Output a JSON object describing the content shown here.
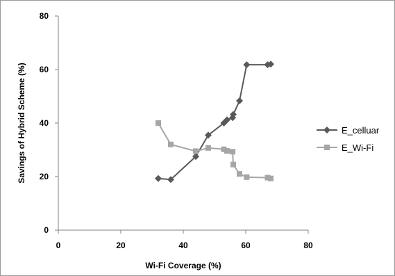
{
  "chart_data": {
    "type": "scatter",
    "xlabel": "Wi-Fi Coverage (%)",
    "ylabel": "Savings of Hybrid Scheme (%)",
    "xlim": [
      0,
      80
    ],
    "ylim": [
      0,
      80
    ],
    "xticks": [
      0,
      20,
      40,
      60,
      80
    ],
    "yticks": [
      0,
      20,
      40,
      60,
      80
    ],
    "grid": false,
    "legend_position": "right",
    "series": [
      {
        "name": "E_celluar",
        "color": "#595959",
        "marker": "diamond",
        "points": [
          [
            32,
            19.3
          ],
          [
            36,
            18.9
          ],
          [
            44,
            27.5
          ],
          [
            48,
            35.5
          ],
          [
            53,
            40
          ],
          [
            54,
            41.2
          ],
          [
            55.8,
            42
          ],
          [
            56,
            43.2
          ],
          [
            58,
            48.3
          ],
          [
            60.3,
            61.8
          ],
          [
            67,
            61.8
          ],
          [
            68,
            62
          ]
        ]
      },
      {
        "name": "E_Wi-Fi",
        "color": "#a6a6a6",
        "marker": "square",
        "points": [
          [
            32,
            40
          ],
          [
            36,
            32
          ],
          [
            44,
            29.5
          ],
          [
            48,
            30.7
          ],
          [
            53,
            30.2
          ],
          [
            54,
            29.6
          ],
          [
            55.8,
            29.3
          ],
          [
            56,
            24.5
          ],
          [
            58,
            21
          ],
          [
            60.3,
            19.8
          ],
          [
            67,
            19.6
          ],
          [
            68,
            19.3
          ]
        ]
      }
    ]
  }
}
